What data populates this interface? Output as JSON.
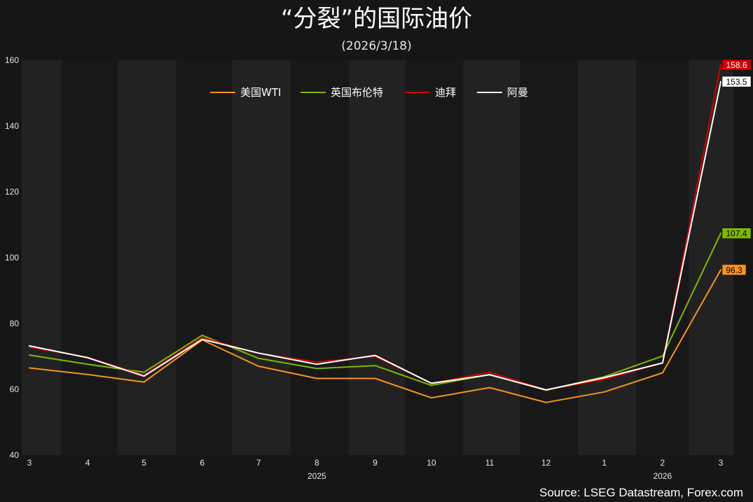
{
  "title": "“分裂”的国际油价",
  "subtitle": "(2026/3/18)",
  "source": "Source: LSEG Datastream, Forex.com",
  "chart_data": {
    "type": "line",
    "title": "“分裂”的国际油价",
    "subtitle": "(2026/3/18)",
    "xlabel": "",
    "ylabel": "",
    "ylim": [
      40,
      160
    ],
    "yticks": [
      40,
      60,
      80,
      100,
      120,
      140,
      160
    ],
    "x": [
      "2025-03",
      "2025-04",
      "2025-05",
      "2025-06",
      "2025-07",
      "2025-08",
      "2025-09",
      "2025-10",
      "2025-11",
      "2025-12",
      "2026-01",
      "2026-02",
      "2026-03"
    ],
    "x_tick_labels": [
      "3",
      "4",
      "5",
      "6",
      "7",
      "8",
      "9",
      "10",
      "11",
      "12",
      "1",
      "2",
      "3"
    ],
    "year_labels": [
      {
        "label": "2025",
        "at": "2025-08"
      },
      {
        "label": "2026",
        "at": "2026-02"
      }
    ],
    "grid": false,
    "legend_position": "top",
    "background": "#161616",
    "band_color": "#222222",
    "series": [
      {
        "name": "美国WTI",
        "color": "#f7931e",
        "values": [
          66.5,
          64.5,
          62.2,
          75.0,
          67.0,
          63.3,
          63.3,
          57.4,
          60.5,
          56.0,
          59.2,
          65.0,
          96.3
        ],
        "last_label": "96.3"
      },
      {
        "name": "英国布伦特",
        "color": "#7fb800",
        "values": [
          70.4,
          67.6,
          65.2,
          76.4,
          69.4,
          66.3,
          67.2,
          61.2,
          64.5,
          59.7,
          63.8,
          70.1,
          107.4
        ],
        "last_label": "107.4"
      },
      {
        "name": "迪拜",
        "color": "#d40000",
        "values": [
          72.8,
          69.7,
          64.3,
          75.7,
          70.9,
          68.3,
          70.0,
          61.8,
          65.2,
          59.8,
          63.0,
          68.0,
          158.6
        ],
        "last_label": "158.6"
      },
      {
        "name": "阿曼",
        "color": "#ffffff",
        "values": [
          73.2,
          69.6,
          64.0,
          75.2,
          71.0,
          67.6,
          70.3,
          61.8,
          64.4,
          59.8,
          63.5,
          68.0,
          153.5
        ],
        "last_label": "153.5"
      }
    ]
  }
}
